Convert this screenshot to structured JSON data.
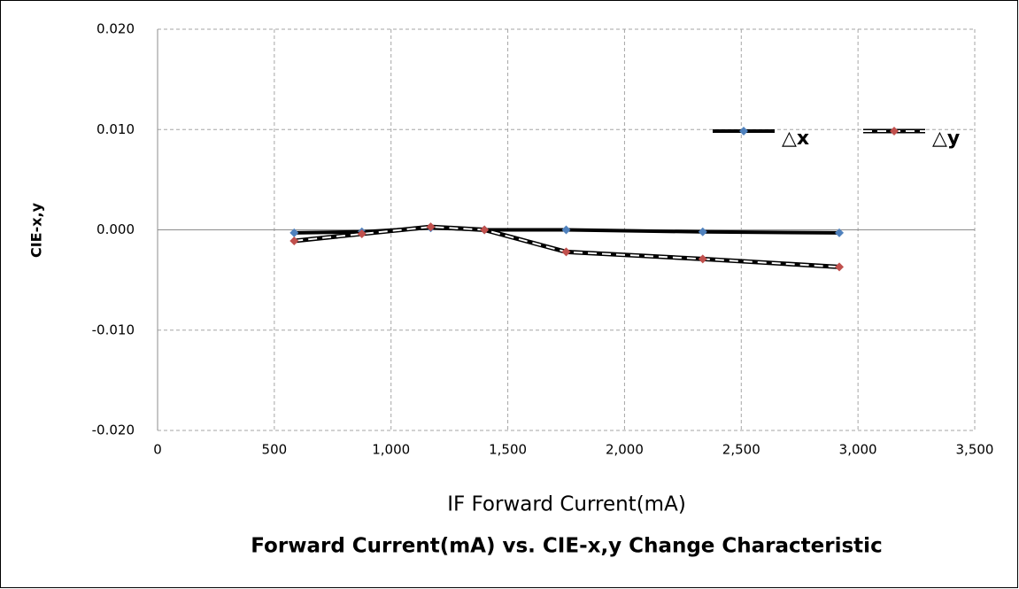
{
  "chart_data": {
    "type": "line",
    "title": "Forward Current(mA) vs. CIE-x,y Change Characteristic",
    "x_label": "IF Forward Current(mA)",
    "y_label": "CIE-x,y",
    "x": [
      585,
      875,
      1170,
      1400,
      1750,
      2335,
      2920
    ],
    "series": [
      {
        "name": "△x",
        "color": "#4f81bd",
        "line_color": "#000000",
        "dashed": false,
        "values": [
          -0.0003,
          -0.0002,
          0.0002,
          0.0,
          0.0,
          -0.0002,
          -0.0003
        ]
      },
      {
        "name": "△y",
        "color": "#c0504d",
        "line_color": "#000000",
        "dashed": true,
        "values": [
          -0.0011,
          -0.0004,
          0.0003,
          0.0,
          -0.0022,
          -0.0029,
          -0.0037
        ]
      }
    ],
    "xlim": [
      0,
      3500
    ],
    "xticks": [
      0,
      500,
      {
        "value": 1000,
        "label": "1,000"
      },
      {
        "value": 1500,
        "label": "1,500"
      },
      {
        "value": 2000,
        "label": "2,000"
      },
      {
        "value": 2500,
        "label": "2,500"
      },
      {
        "value": 3000,
        "label": "3,000"
      },
      {
        "value": 3500,
        "label": "3,500"
      }
    ],
    "ylim": [
      -0.02,
      0.02
    ],
    "yticks": [
      {
        "value": -0.02,
        "label": "-0.020"
      },
      {
        "value": -0.01,
        "label": "-0.010"
      },
      {
        "value": 0,
        "label": "0.000"
      },
      {
        "value": 0.01,
        "label": "0.010"
      },
      {
        "value": 0.02,
        "label": "0.020"
      }
    ],
    "grid": true,
    "legend": "upper right"
  }
}
